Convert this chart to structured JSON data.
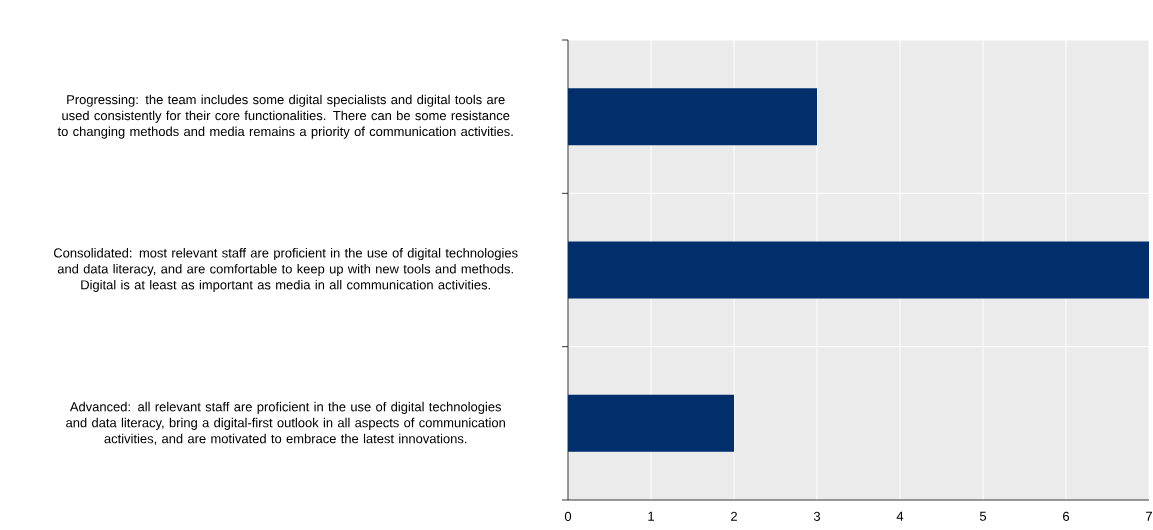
{
  "chart_data": {
    "type": "bar",
    "orientation": "horizontal",
    "categories": [
      "Progressing: the team includes some digital specialists and digital tools are used consistently for their core functionalities. There can be some resistance to changing methods and media remains a priority of communication activities.",
      "Consolidated: most relevant staff are proficient in the use of digital technologies and data literacy, and are comfortable to keep up with new tools and methods. Digital is at least as important as media in all communication activities.",
      "Advanced: all relevant staff are proficient in the use of digital technologies and data literacy, bring a digital-first outlook in all aspects of communication activities, and are motivated to embrace the latest innovations."
    ],
    "values": [
      3,
      7,
      2
    ],
    "color": "#002f6c",
    "xlim": [
      0,
      7
    ],
    "xticks": [
      0,
      1,
      2,
      3,
      4,
      5,
      6,
      7
    ],
    "grid": true
  }
}
